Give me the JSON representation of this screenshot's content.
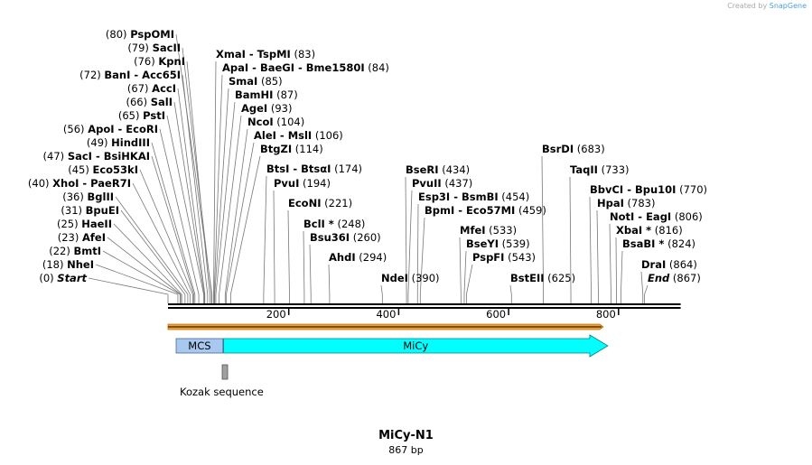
{
  "branding": {
    "prefix": "Created by",
    "name": "SnapGene"
  },
  "construct": {
    "name": "MiCy-N1",
    "length_text": "867 bp",
    "length": 867
  },
  "scale": {
    "ticks": [
      200,
      400,
      600,
      800
    ],
    "tick_labels": [
      "200",
      "400",
      "600",
      "800"
    ]
  },
  "features": [
    {
      "name": "MCS",
      "start": 0,
      "end": 100,
      "color": "#a8c8f0",
      "type": "box"
    },
    {
      "name": "MiCy",
      "start": 106,
      "end": 792,
      "color": "#00ffff",
      "type": "arrow"
    },
    {
      "name": "Kozak sequence",
      "start": 97,
      "end": 107,
      "color": "#a0a0a0",
      "type": "marker"
    }
  ],
  "orf": {
    "start": 0,
    "end": 792,
    "color": "#f0a030"
  },
  "sites": [
    {
      "enzymes": [
        "PspOMI"
      ],
      "pos": 80,
      "num_first": true
    },
    {
      "enzymes": [
        "SacII"
      ],
      "pos": 79,
      "num_first": true
    },
    {
      "enzymes": [
        "KpnI"
      ],
      "pos": 76,
      "num_first": true
    },
    {
      "enzymes": [
        "BanI",
        "Acc65I"
      ],
      "pos": 72,
      "num_first": true
    },
    {
      "enzymes": [
        "AccI"
      ],
      "pos": 67,
      "num_first": true
    },
    {
      "enzymes": [
        "SalI"
      ],
      "pos": 66,
      "num_first": true
    },
    {
      "enzymes": [
        "PstI"
      ],
      "pos": 65,
      "num_first": true
    },
    {
      "enzymes": [
        "ApoI",
        "EcoRI"
      ],
      "pos": 56,
      "num_first": true
    },
    {
      "enzymes": [
        "HindIII"
      ],
      "pos": 49,
      "num_first": true
    },
    {
      "enzymes": [
        "SacI",
        "BsiHKAI"
      ],
      "pos": 47,
      "num_first": true
    },
    {
      "enzymes": [
        "Eco53kI"
      ],
      "pos": 45,
      "num_first": true
    },
    {
      "enzymes": [
        "XhoI",
        "PaeR7I"
      ],
      "pos": 40,
      "num_first": true
    },
    {
      "enzymes": [
        "BglII"
      ],
      "pos": 36,
      "num_first": true
    },
    {
      "enzymes": [
        "BpuEI"
      ],
      "pos": 31,
      "num_first": true
    },
    {
      "enzymes": [
        "HaeII"
      ],
      "pos": 25,
      "num_first": true
    },
    {
      "enzymes": [
        "AfeI"
      ],
      "pos": 23,
      "num_first": true
    },
    {
      "enzymes": [
        "BmtI"
      ],
      "pos": 22,
      "num_first": true
    },
    {
      "enzymes": [
        "NheI"
      ],
      "pos": 18,
      "num_first": true
    },
    {
      "enzymes": [
        "Start"
      ],
      "pos": 0,
      "num_first": true,
      "italic": true
    },
    {
      "enzymes": [
        "XmaI",
        "TspMI"
      ],
      "pos": 83,
      "num_first": false
    },
    {
      "enzymes": [
        "ApaI",
        "BaeGI",
        "Bme1580I"
      ],
      "pos": 84,
      "num_first": false
    },
    {
      "enzymes": [
        "SmaI"
      ],
      "pos": 85,
      "num_first": false
    },
    {
      "enzymes": [
        "BamHI"
      ],
      "pos": 87,
      "num_first": false
    },
    {
      "enzymes": [
        "AgeI"
      ],
      "pos": 93,
      "num_first": false
    },
    {
      "enzymes": [
        "NcoI"
      ],
      "pos": 104,
      "num_first": false
    },
    {
      "enzymes": [
        "AleI",
        "MslI"
      ],
      "pos": 106,
      "num_first": false
    },
    {
      "enzymes": [
        "BtgZI"
      ],
      "pos": 114,
      "num_first": false
    },
    {
      "enzymes": [
        "BtsI",
        "BtsαI"
      ],
      "pos": 174,
      "num_first": false
    },
    {
      "enzymes": [
        "PvuI"
      ],
      "pos": 194,
      "num_first": false
    },
    {
      "enzymes": [
        "EcoNI"
      ],
      "pos": 221,
      "num_first": false
    },
    {
      "enzymes": [
        "BclI *"
      ],
      "pos": 248,
      "num_first": false
    },
    {
      "enzymes": [
        "Bsu36I"
      ],
      "pos": 260,
      "num_first": false
    },
    {
      "enzymes": [
        "AhdI"
      ],
      "pos": 294,
      "num_first": false
    },
    {
      "enzymes": [
        "NdeI"
      ],
      "pos": 390,
      "num_first": false
    },
    {
      "enzymes": [
        "BseRI"
      ],
      "pos": 434,
      "num_first": false
    },
    {
      "enzymes": [
        "PvuII"
      ],
      "pos": 437,
      "num_first": false
    },
    {
      "enzymes": [
        "Esp3I",
        "BsmBI"
      ],
      "pos": 454,
      "num_first": false
    },
    {
      "enzymes": [
        "BpmI",
        "Eco57MI"
      ],
      "pos": 459,
      "num_first": false
    },
    {
      "enzymes": [
        "MfeI"
      ],
      "pos": 533,
      "num_first": false
    },
    {
      "enzymes": [
        "BseYI"
      ],
      "pos": 539,
      "num_first": false
    },
    {
      "enzymes": [
        "PspFI"
      ],
      "pos": 543,
      "num_first": false
    },
    {
      "enzymes": [
        "BstEII"
      ],
      "pos": 625,
      "num_first": false
    },
    {
      "enzymes": [
        "BsrDI"
      ],
      "pos": 683,
      "num_first": false
    },
    {
      "enzymes": [
        "TaqII"
      ],
      "pos": 733,
      "num_first": false
    },
    {
      "enzymes": [
        "BbvCI",
        "Bpu10I"
      ],
      "pos": 770,
      "num_first": false
    },
    {
      "enzymes": [
        "HpaI"
      ],
      "pos": 783,
      "num_first": false
    },
    {
      "enzymes": [
        "NotI",
        "EagI"
      ],
      "pos": 806,
      "num_first": false
    },
    {
      "enzymes": [
        "XbaI *"
      ],
      "pos": 816,
      "num_first": false
    },
    {
      "enzymes": [
        "BsaBI *"
      ],
      "pos": 824,
      "num_first": false
    },
    {
      "enzymes": [
        "DraI"
      ],
      "pos": 864,
      "num_first": false
    },
    {
      "enzymes": [
        "End"
      ],
      "pos": 867,
      "num_first": false,
      "italic": true
    }
  ]
}
